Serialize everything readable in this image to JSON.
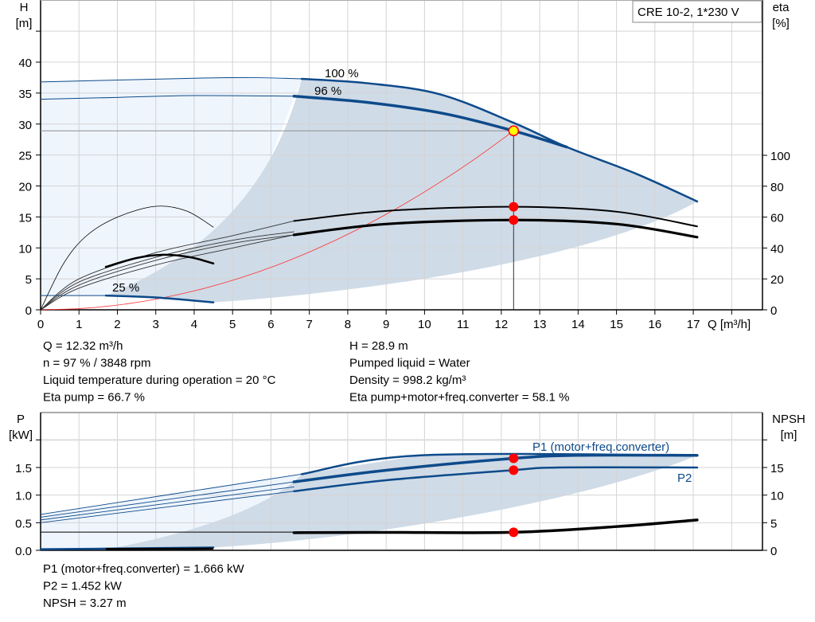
{
  "title_box": "CRE 10-2, 1*230 V",
  "colors": {
    "curve_blue": "#0d4a8a",
    "shade_light": "#eef5fd",
    "shade_dark": "#cfdbe7",
    "system_curve": "#ff3030",
    "duty_point": "#ff0000",
    "duty_fill": "#ffff00",
    "grid": "#d4d4d4"
  },
  "chart_data": [
    {
      "type": "line",
      "xlabel": "Q [m³/h]",
      "ylabel_left": [
        "H",
        "[m]"
      ],
      "ylabel_right": [
        "eta",
        "[%]"
      ],
      "xlim": [
        0,
        18
      ],
      "ylim_left": [
        0,
        50
      ],
      "ylim_right_eta": [
        0,
        100
      ],
      "x_ticks": [
        "0",
        "1",
        "2",
        "3",
        "4",
        "5",
        "6",
        "7",
        "8",
        "9",
        "10",
        "11",
        "12",
        "13",
        "14",
        "15",
        "16",
        "17"
      ],
      "y_ticks_left": [
        "0",
        "5",
        "10",
        "15",
        "20",
        "25",
        "30",
        "35",
        "40"
      ],
      "y_ticks_right": [
        "0",
        "20",
        "40",
        "60",
        "80",
        "100"
      ],
      "grid": true,
      "curve_labels": {
        "max": "100 %",
        "duty": "96 %",
        "min": "25 %"
      },
      "head_series": {
        "max_thin": [
          [
            0,
            36.8
          ],
          [
            2,
            37.1
          ],
          [
            4,
            37.4
          ],
          [
            5.5,
            37.5
          ],
          [
            6.8,
            37.3
          ]
        ],
        "max": [
          [
            6.8,
            37.3
          ],
          [
            8.5,
            36.6
          ],
          [
            10.4,
            34.8
          ],
          [
            12.32,
            30.2
          ],
          [
            13.7,
            26.3
          ],
          [
            15.5,
            22
          ],
          [
            17.1,
            17.5
          ]
        ],
        "duty_thin": [
          [
            0,
            34
          ],
          [
            2,
            34.3
          ],
          [
            4,
            34.6
          ],
          [
            6.6,
            34.5
          ]
        ],
        "duty": [
          [
            6.6,
            34.5
          ],
          [
            8.5,
            33.5
          ],
          [
            10.5,
            31.7
          ],
          [
            12.32,
            28.9
          ],
          [
            13.7,
            26.3
          ]
        ],
        "min_thin": [
          [
            0,
            2.3
          ],
          [
            1.7,
            2.3
          ]
        ],
        "min": [
          [
            1.7,
            2.3
          ],
          [
            3,
            2
          ],
          [
            4.5,
            1.2
          ]
        ]
      },
      "eta_series": {
        "pump_thin": [
          [
            0,
            0
          ],
          [
            1,
            18
          ],
          [
            3,
            34
          ],
          [
            5,
            45
          ],
          [
            6.6,
            50.5
          ]
        ],
        "pump": [
          [
            6.6,
            50.5
          ],
          [
            9,
            56
          ],
          [
            12.32,
            58.1
          ],
          [
            15,
            55
          ],
          [
            17.1,
            47
          ]
        ],
        "pump_b_thin": [
          [
            0,
            0
          ],
          [
            1,
            16
          ],
          [
            3,
            32
          ],
          [
            5,
            43
          ],
          [
            6.6,
            48.5
          ]
        ],
        "total_thin": [
          [
            0,
            0
          ],
          [
            1,
            14
          ],
          [
            3,
            29
          ],
          [
            5,
            40
          ],
          [
            6.6,
            48.5
          ]
        ],
        "total": [
          [
            6.6,
            48.5
          ],
          [
            9,
            55.5
          ],
          [
            12.32,
            58.1
          ],
          [
            15,
            55.5
          ],
          [
            17.1,
            47
          ]
        ],
        "upper_thin": [
          [
            0,
            0
          ],
          [
            1,
            20
          ],
          [
            3,
            37
          ],
          [
            5,
            48
          ],
          [
            6.6,
            57.5
          ]
        ],
        "upper": [
          [
            6.6,
            57.5
          ],
          [
            9,
            64
          ],
          [
            12.32,
            66.7
          ],
          [
            15,
            63.5
          ],
          [
            17.1,
            54
          ]
        ],
        "min_pump": [
          [
            0,
            0
          ],
          [
            0.6,
            30
          ],
          [
            1.2,
            48
          ],
          [
            2,
            60
          ],
          [
            3,
            67
          ],
          [
            3.8,
            64
          ],
          [
            4.5,
            53.5
          ]
        ],
        "min_total": [
          [
            1.7,
            27.8
          ],
          [
            2.5,
            33.5
          ],
          [
            3.2,
            35.6
          ],
          [
            3.9,
            34
          ],
          [
            4.5,
            30
          ]
        ]
      },
      "system_curve_h_at_duty": 28.9,
      "duty_point": {
        "Q": 12.32,
        "H": 28.9,
        "eta_pump": 66.7,
        "eta_total": 58.1
      },
      "readout": {
        "left": [
          "Q = 12.32 m³/h",
          "n = 97 % / 3848 rpm",
          "Liquid temperature during operation = 20 °C",
          "Eta pump = 66.7 %"
        ],
        "right": [
          "H = 28.9 m",
          "Pumped liquid = Water",
          "Density = 998.2 kg/m³",
          "Eta pump+motor+freq.converter = 58.1 %"
        ]
      }
    },
    {
      "type": "line",
      "ylabel_left": [
        "P",
        "[kW]"
      ],
      "ylabel_right": [
        "NPSH",
        "[m]"
      ],
      "xlim": [
        0,
        18
      ],
      "ylim_left": [
        0,
        2.5
      ],
      "ylim_right": [
        0,
        25
      ],
      "y_ticks_left": [
        "0.0",
        "0.5",
        "1.0",
        "1.5"
      ],
      "y_ticks_right": [
        "0",
        "5",
        "10",
        "15"
      ],
      "grid": true,
      "series_labels": {
        "p1": "P1 (motor+freq.converter)",
        "p2": "P2"
      },
      "power_series": {
        "p1max_thin": [
          [
            0,
            0.65
          ],
          [
            6.8,
            1.38
          ]
        ],
        "p1max": [
          [
            6.8,
            1.38
          ],
          [
            9.9,
            1.72
          ],
          [
            17.1,
            1.72
          ]
        ],
        "p1_thin": [
          [
            0,
            0.6
          ],
          [
            6.6,
            1.24
          ]
        ],
        "p1": [
          [
            6.6,
            1.24
          ],
          [
            9,
            1.45
          ],
          [
            12.32,
            1.666
          ],
          [
            14,
            1.72
          ],
          [
            17.1,
            1.72
          ]
        ],
        "p2b_thin": [
          [
            0,
            0.55
          ],
          [
            6.6,
            1.15
          ]
        ],
        "p2_thin": [
          [
            0,
            0.5
          ],
          [
            6.6,
            1.07
          ]
        ],
        "p2": [
          [
            6.6,
            1.07
          ],
          [
            9,
            1.27
          ],
          [
            12.32,
            1.452
          ],
          [
            13.5,
            1.5
          ],
          [
            17.1,
            1.5
          ]
        ],
        "p_min": [
          [
            0,
            0.02
          ],
          [
            1.7,
            0.03
          ],
          [
            4.5,
            0.05
          ]
        ]
      },
      "npsh_series": {
        "thin": [
          [
            0,
            3.3
          ],
          [
            6.6,
            3.3
          ]
        ],
        "main": [
          [
            6.6,
            3.2
          ],
          [
            9,
            3.25
          ],
          [
            12.32,
            3.27
          ],
          [
            15,
            4.3
          ],
          [
            17.1,
            5.5
          ]
        ]
      },
      "duty_point": {
        "Q": 12.32,
        "P1": 1.666,
        "P2": 1.452,
        "NPSH": 3.27
      },
      "readout": [
        "P1 (motor+freq.converter) = 1.666 kW",
        "P2 = 1.452 kW",
        "NPSH = 3.27 m"
      ]
    }
  ]
}
